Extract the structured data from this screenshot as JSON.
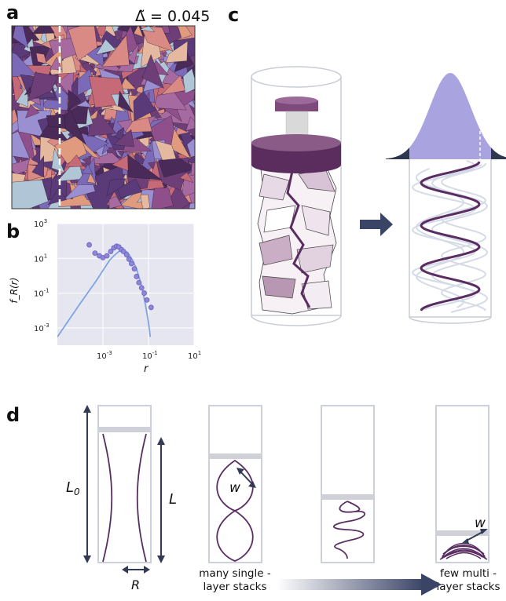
{
  "panels": {
    "a": {
      "label": "a",
      "delta_text": "Δ̃ = 0.045"
    },
    "b": {
      "label": "b",
      "ylabel": "f_R(r)",
      "xlabel": "r"
    },
    "c": {
      "label": "c"
    },
    "d": {
      "label": "d",
      "L0": "L",
      "L0_sub": "0",
      "L": "L",
      "R": "R",
      "w1": "w",
      "w2": "w",
      "caption_left_1": "many single -",
      "caption_left_2": "layer stacks",
      "caption_right_1": "few multi -",
      "caption_right_2": "layer stacks"
    }
  },
  "chart_data": {
    "type": "scatter",
    "xscale": "log",
    "yscale": "log",
    "xlim": [
      1e-05,
      10
    ],
    "ylim": [
      0.0001,
      1000
    ],
    "xticks": [
      "10^-3",
      "10^-1",
      "10^1"
    ],
    "yticks": [
      "10^3",
      "10^1",
      "10^-1",
      "10^-3"
    ],
    "xlabel": "r",
    "ylabel": "f_R(r)",
    "grid": true,
    "series": [
      {
        "kind": "points",
        "x": [
          0.00025,
          0.00045,
          0.0007,
          0.001,
          0.0015,
          0.0022,
          0.003,
          0.004,
          0.005,
          0.0065,
          0.008,
          0.011,
          0.014,
          0.018,
          0.024,
          0.03,
          0.038,
          0.05,
          0.065,
          0.085,
          0.13
        ],
        "y": [
          60,
          20,
          14,
          11,
          14,
          25,
          40,
          50,
          45,
          32,
          25,
          16,
          9,
          5,
          2.5,
          0.9,
          0.4,
          0.2,
          0.1,
          0.04,
          0.015
        ]
      },
      {
        "kind": "curve",
        "x": [
          1e-05,
          0.0001,
          0.0005,
          0.001,
          0.002,
          0.003,
          0.005,
          0.008,
          0.012,
          0.02,
          0.03,
          0.05,
          0.07,
          0.1,
          0.12
        ],
        "y": [
          0.0003,
          0.025,
          0.5,
          2,
          8,
          14,
          25,
          30,
          22,
          8,
          2.5,
          0.25,
          0.03,
          0.002,
          0.0003
        ]
      }
    ],
    "colors": {
      "point_fill": "#8e86d6",
      "point_stroke": "#6a5fc4",
      "curve": "#7fa4e0",
      "panel_bg": "#e6e6f0"
    }
  }
}
